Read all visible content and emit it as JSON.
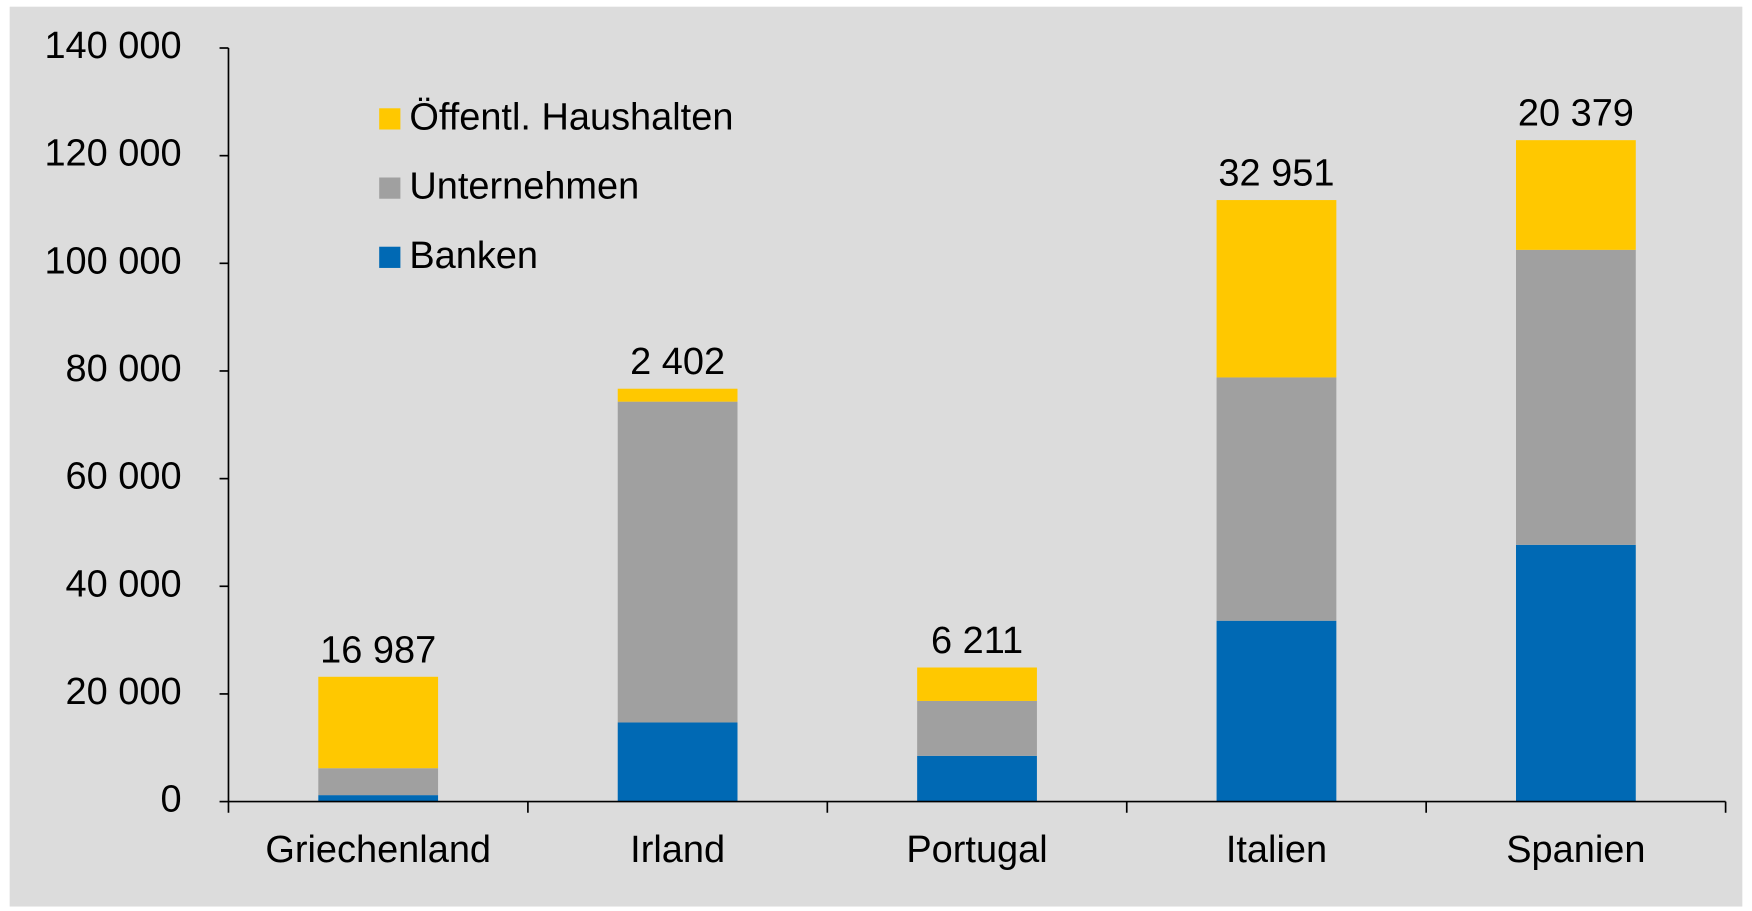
{
  "chart_data": {
    "type": "stacked_bar",
    "categories": [
      "Griechenland",
      "Irland",
      "Portugal",
      "Italien",
      "Spanien"
    ],
    "series": [
      {
        "name": "Banken",
        "color": "#0069b4",
        "values": [
          1200,
          14700,
          8500,
          33600,
          47700
        ]
      },
      {
        "name": "Unternehmen",
        "color": "#a0a0a0",
        "values": [
          5000,
          59600,
          10200,
          45200,
          54800
        ]
      },
      {
        "name": "Öffentl.  Haushalten",
        "color": "#ffc800",
        "values": [
          16987,
          2402,
          6211,
          32951,
          20379
        ],
        "value_labels": [
          "16 987",
          "2 402",
          "6 211",
          "32 951",
          "20 379"
        ]
      }
    ],
    "ylim": [
      0,
      140000
    ],
    "yticks": [
      0,
      {
        "value": 20000,
        "label": "20 000"
      },
      {
        "value": 40000,
        "label": "40 000"
      },
      {
        "value": 60000,
        "label": "60 000"
      },
      {
        "value": 80000,
        "label": "80 000"
      },
      {
        "value": 100000,
        "label": "100 000"
      },
      {
        "value": 120000,
        "label": "120 000"
      },
      {
        "value": 140000,
        "label": "140 000"
      }
    ],
    "grid": false,
    "legend": "top-left"
  }
}
